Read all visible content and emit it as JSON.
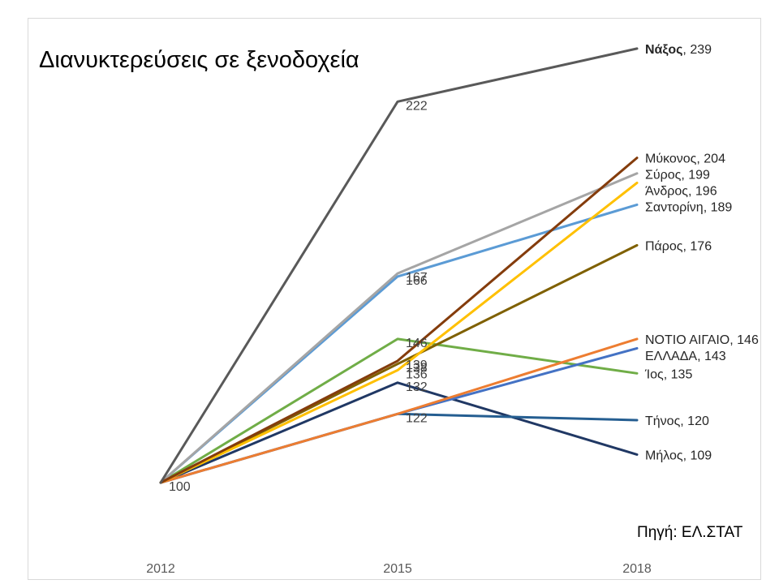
{
  "title": "Διανυκτερεύσεις σε ξενοδοχεία",
  "source": "Πηγή: ΕΛ.ΣΤΑΤ",
  "chart_data": {
    "type": "line",
    "title": "Διανυκτερεύσεις σε ξενοδοχεία",
    "x": [
      "2012",
      "2015",
      "2018"
    ],
    "xlabel": "",
    "ylabel": "",
    "ylim": [
      100,
      240
    ],
    "grid": false,
    "legend": "none",
    "series": [
      {
        "name": "Νάξος",
        "values": [
          100,
          222,
          239
        ],
        "color": "#595959",
        "bold_name": true
      },
      {
        "name": "Μύκονος",
        "values": [
          100,
          139,
          204
        ],
        "color": "#843c0c"
      },
      {
        "name": "Σύρος",
        "values": [
          100,
          167,
          199
        ],
        "color": "#a5a5a5"
      },
      {
        "name": "Άνδρος",
        "values": [
          100,
          136,
          196
        ],
        "color": "#ffc000"
      },
      {
        "name": "Σαντορίνη",
        "values": [
          100,
          166,
          189
        ],
        "color": "#5b9bd5"
      },
      {
        "name": "Πάρος",
        "values": [
          100,
          138,
          176
        ],
        "color": "#7f6000"
      },
      {
        "name": "ΝΟΤΙΟ ΑΙΓΑΙΟ",
        "values": [
          100,
          122,
          146
        ],
        "color": "#ed7d31"
      },
      {
        "name": "ΕΛΛΑΔΑ",
        "values": [
          100,
          122,
          143
        ],
        "color": "#4472c4"
      },
      {
        "name": "Ίος",
        "values": [
          100,
          146,
          135
        ],
        "color": "#70ad47"
      },
      {
        "name": "Τήνος",
        "values": [
          100,
          122,
          120
        ],
        "color": "#255e91"
      },
      {
        "name": "Μήλος",
        "values": [
          100,
          132,
          109
        ],
        "color": "#203864"
      }
    ],
    "point_labels": [
      {
        "x": "2012",
        "text": "100"
      },
      {
        "x": "2015",
        "text": "222"
      },
      {
        "x": "2015",
        "text": "167"
      },
      {
        "x": "2015",
        "text": "166"
      },
      {
        "x": "2015",
        "text": "146"
      },
      {
        "x": "2015",
        "text": "139"
      },
      {
        "x": "2015",
        "text": "138"
      },
      {
        "x": "2015",
        "text": "136"
      },
      {
        "x": "2015",
        "text": "132"
      },
      {
        "x": "2015",
        "text": "122"
      }
    ]
  }
}
